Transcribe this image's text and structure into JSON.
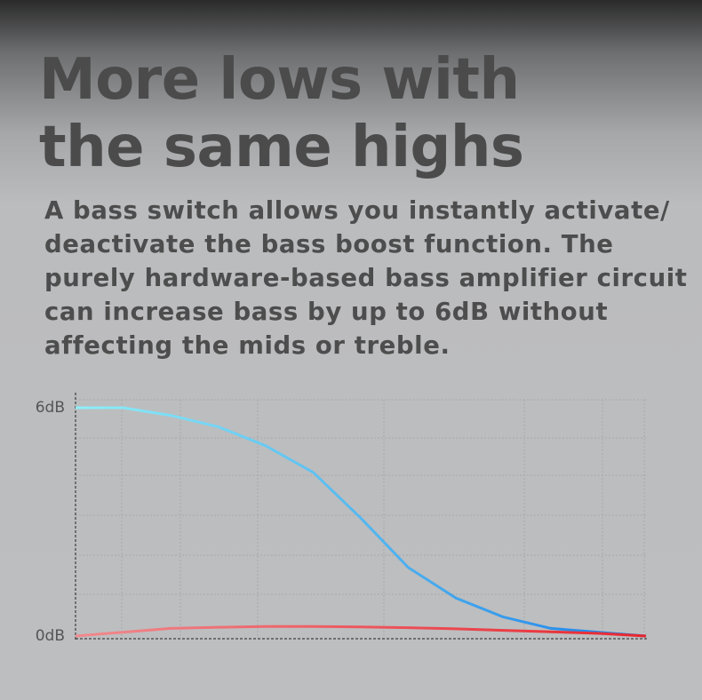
{
  "chart_data": {
    "type": "line",
    "title": "More lows with the same highs",
    "subtitle": "A bass switch allows you instantly activate/ deactivate the bass boost function. The purely hardware-based bass amplifier circuit can increase bass by up to 6dB without affecting the mids or treble.",
    "categories": [
      null,
      null,
      null,
      null,
      null,
      null,
      null,
      null,
      null,
      null,
      null,
      null,
      null
    ],
    "series": [
      {
        "color": "#1a7fe8",
        "values": [
          6.0,
          6.0,
          5.8,
          5.5,
          5.0,
          4.3,
          3.1,
          1.8,
          1.0,
          0.5,
          0.2,
          0.1,
          0.0
        ]
      },
      {
        "color": "#e8262e",
        "values": [
          0.0,
          0.1,
          0.2,
          0.23,
          0.25,
          0.25,
          0.24,
          0.22,
          0.19,
          0.15,
          0.11,
          0.07,
          0.0
        ]
      }
    ],
    "ylim": [
      0,
      6
    ],
    "yticks": [
      {
        "value": 0,
        "label": "0dB"
      },
      {
        "value": 6,
        "label": "6dB"
      }
    ]
  }
}
